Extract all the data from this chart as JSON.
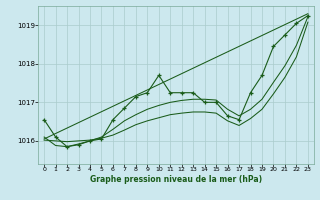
{
  "title": "Graphe pression niveau de la mer (hPa)",
  "background_color": "#cce8ee",
  "grid_color": "#aacccc",
  "line_color": "#1a5c1a",
  "xlim": [
    -0.5,
    23.5
  ],
  "ylim": [
    1015.4,
    1019.5
  ],
  "yticks": [
    1016,
    1017,
    1018,
    1019
  ],
  "xticks": [
    0,
    1,
    2,
    3,
    4,
    5,
    6,
    7,
    8,
    9,
    10,
    11,
    12,
    13,
    14,
    15,
    16,
    17,
    18,
    19,
    20,
    21,
    22,
    23
  ],
  "main_line_x": [
    0,
    1,
    2,
    3,
    4,
    5,
    6,
    7,
    8,
    9,
    10,
    11,
    12,
    13,
    14,
    15,
    16,
    17,
    18,
    19,
    20,
    21,
    22,
    23
  ],
  "main_line_y": [
    1016.55,
    1016.1,
    1015.85,
    1015.9,
    1016.0,
    1016.05,
    1016.55,
    1016.85,
    1017.15,
    1017.25,
    1017.7,
    1017.25,
    1017.25,
    1017.25,
    1017.0,
    1017.0,
    1016.65,
    1016.55,
    1017.25,
    1017.7,
    1018.45,
    1018.75,
    1019.05,
    1019.25
  ],
  "trend_line": [
    [
      0,
      23
    ],
    [
      1016.05,
      1019.3
    ]
  ],
  "smooth_line_y": [
    1016.1,
    1015.88,
    1015.85,
    1015.92,
    1016.0,
    1016.1,
    1016.3,
    1016.52,
    1016.68,
    1016.82,
    1016.92,
    1017.0,
    1017.05,
    1017.08,
    1017.08,
    1017.06,
    1016.82,
    1016.65,
    1016.82,
    1017.08,
    1017.52,
    1017.95,
    1018.48,
    1019.22
  ],
  "lower_line_y": [
    1016.02,
    1016.0,
    1015.98,
    1016.0,
    1016.02,
    1016.07,
    1016.15,
    1016.28,
    1016.42,
    1016.52,
    1016.6,
    1016.68,
    1016.72,
    1016.75,
    1016.75,
    1016.72,
    1016.52,
    1016.4,
    1016.58,
    1016.82,
    1017.22,
    1017.65,
    1018.18,
    1019.08
  ]
}
